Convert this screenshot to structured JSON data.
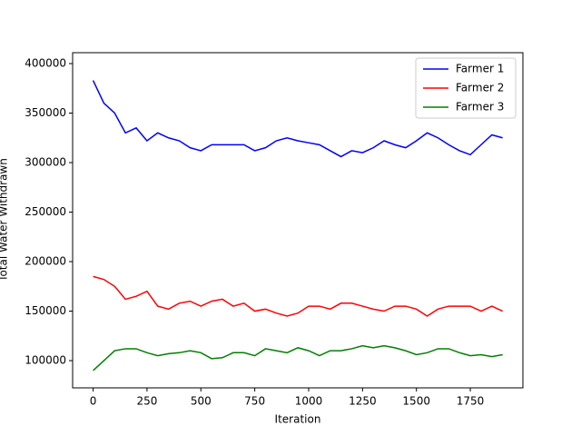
{
  "chart_data": {
    "type": "line",
    "xlabel": "Iteration",
    "ylabel": "Total Water Withdrawn",
    "x": [
      0,
      50,
      100,
      150,
      200,
      250,
      300,
      350,
      400,
      450,
      500,
      550,
      600,
      650,
      700,
      750,
      800,
      850,
      900,
      950,
      1000,
      1050,
      1100,
      1150,
      1200,
      1250,
      1300,
      1350,
      1400,
      1450,
      1500,
      1550,
      1600,
      1650,
      1700,
      1750,
      1800,
      1850,
      1900
    ],
    "series": [
      {
        "name": "Farmer 1",
        "color": "#0000ff",
        "values": [
          383000,
          360000,
          350000,
          330000,
          335000,
          322000,
          330000,
          325000,
          322000,
          315000,
          312000,
          318000,
          318000,
          318000,
          318000,
          312000,
          315000,
          322000,
          325000,
          322000,
          320000,
          318000,
          312000,
          306000,
          312000,
          310000,
          315000,
          322000,
          318000,
          315000,
          322000,
          330000,
          325000,
          318000,
          312000,
          308000,
          318000,
          328000,
          325000
        ]
      },
      {
        "name": "Farmer 2",
        "color": "#ff0000",
        "values": [
          185000,
          182000,
          175000,
          162000,
          165000,
          170000,
          155000,
          152000,
          158000,
          160000,
          155000,
          160000,
          162000,
          155000,
          158000,
          150000,
          152000,
          148000,
          145000,
          148000,
          155000,
          155000,
          152000,
          158000,
          158000,
          155000,
          152000,
          150000,
          155000,
          155000,
          152000,
          145000,
          152000,
          155000,
          155000,
          155000,
          150000,
          155000,
          150000
        ]
      },
      {
        "name": "Farmer 3",
        "color": "#008000",
        "values": [
          90000,
          100000,
          110000,
          112000,
          112000,
          108000,
          105000,
          107000,
          108000,
          110000,
          108000,
          102000,
          103000,
          108000,
          108000,
          105000,
          112000,
          110000,
          108000,
          113000,
          110000,
          105000,
          110000,
          110000,
          112000,
          115000,
          113000,
          115000,
          113000,
          110000,
          106000,
          108000,
          112000,
          112000,
          108000,
          105000,
          106000,
          104000,
          106000
        ]
      }
    ],
    "xlim": [
      -95,
      1994
    ],
    "xticks": [
      0,
      250,
      500,
      750,
      1000,
      1250,
      1500,
      1750
    ],
    "ylim": [
      72500,
      411000
    ],
    "yticks": [
      100000,
      150000,
      200000,
      250000,
      300000,
      350000,
      400000
    ],
    "legend": "upper right"
  }
}
